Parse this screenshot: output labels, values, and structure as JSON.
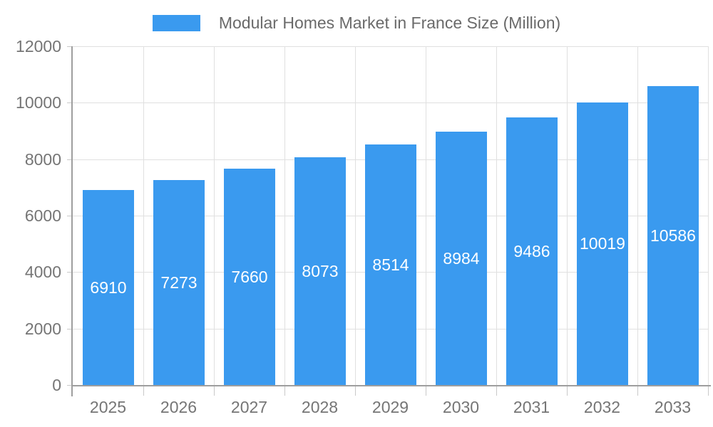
{
  "legend": {
    "label": "Modular Homes Market in France Size (Million)"
  },
  "colors": {
    "bar": "#3A9AEF",
    "bar_label": "#FFFFFF",
    "axis_text": "#757575",
    "legend_text": "#6A6A6A",
    "grid_line": "#E0E0E0",
    "axis_line": "#9E9E9E",
    "tick_line": "#C9C9C9",
    "background": "#FFFFFF"
  },
  "chart_data": {
    "type": "bar",
    "title": "Modular Homes Market in France Size (Million)",
    "categories": [
      "2025",
      "2026",
      "2027",
      "2028",
      "2029",
      "2030",
      "2031",
      "2032",
      "2033"
    ],
    "values": [
      6910,
      7273,
      7660,
      8073,
      8514,
      8984,
      9486,
      10019,
      10586
    ],
    "series": [
      {
        "name": "Modular Homes Market in France Size (Million)",
        "values": [
          6910,
          7273,
          7660,
          8073,
          8514,
          8984,
          9486,
          10019,
          10586
        ]
      }
    ],
    "xlabel": "",
    "ylabel": "",
    "ylim": [
      0,
      12000
    ],
    "yticks": [
      0,
      2000,
      4000,
      6000,
      8000,
      10000,
      12000
    ],
    "grid": true,
    "legend_position": "top",
    "value_labels": "inside-center-white"
  }
}
